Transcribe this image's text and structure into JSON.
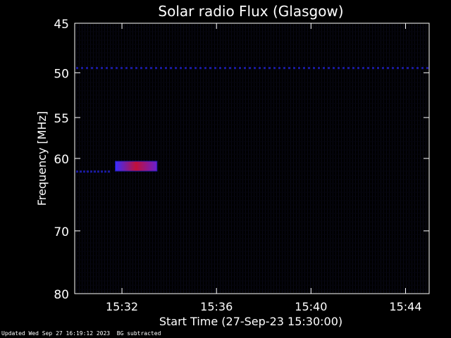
{
  "chart_data": {
    "type": "heatmap",
    "title": "Solar radio Flux (Glasgow)",
    "xlabel": "Start Time (27-Sep-23 15:30:00)",
    "ylabel": "Frequency [MHz]",
    "x_ticks": [
      "15:32",
      "15:36",
      "15:40",
      "15:44"
    ],
    "x_tick_minutes": [
      2,
      6,
      10,
      14
    ],
    "x_range_minutes": [
      0,
      15
    ],
    "y_ticks": [
      45,
      50,
      55,
      60,
      70,
      80
    ],
    "y_range": [
      45,
      80
    ],
    "y_scale": "log",
    "colors": {
      "background": "#000000",
      "low": "#1a1aa0",
      "mid": "#3a2cff",
      "high": "#c0103a"
    },
    "features": [
      {
        "name": "constant-band",
        "freq_mhz": 49.5,
        "t_start_min": 0,
        "t_end_min": 15,
        "intensity": "low"
      },
      {
        "name": "burst",
        "freq_mhz": [
          60.4,
          61.6
        ],
        "t_start_min": 1.7,
        "t_end_min": 3.5,
        "intensity": "high"
      },
      {
        "name": "burst-precursor",
        "freq_mhz": 61.7,
        "t_start_min": 0,
        "t_end_min": 1.5,
        "intensity": "low"
      }
    ]
  },
  "footer": {
    "updated": "Updated Wed Sep 27 16:19:12 2023",
    "note": "BG subtracted"
  }
}
